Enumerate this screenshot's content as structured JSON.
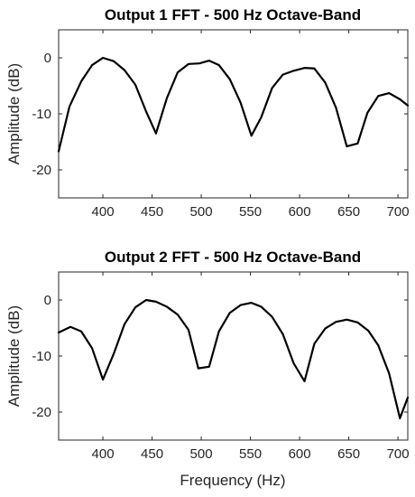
{
  "chart_data": [
    {
      "type": "line",
      "title": "Output 1 FFT - 500 Hz Octave-Band",
      "xlabel": "",
      "ylabel": "Amplitude (dB)",
      "xlim": [
        355,
        710
      ],
      "ylim": [
        -25,
        5
      ],
      "xticks": [
        400,
        450,
        500,
        550,
        600,
        650,
        700
      ],
      "yticks": [
        0,
        -10,
        -20
      ],
      "xtick_labels": [
        "400",
        "450",
        "500",
        "550",
        "600",
        "650",
        "700"
      ],
      "ytick_labels": [
        "0",
        "-10",
        "-20"
      ],
      "grid": false,
      "series": [
        {
          "color": "#000000",
          "x": [
            355,
            366,
            378,
            389,
            400,
            411,
            422,
            433,
            444,
            454,
            465,
            476,
            487,
            498,
            508,
            518,
            529,
            540,
            551,
            561,
            572,
            583,
            594,
            605,
            615,
            626,
            637,
            648,
            659,
            669,
            680,
            691,
            702,
            710
          ],
          "y": [
            -16.7,
            -8.7,
            -4.2,
            -1.3,
            0.0,
            -0.6,
            -2.2,
            -4.8,
            -9.6,
            -13.5,
            -7.2,
            -2.6,
            -1.1,
            -1.0,
            -0.5,
            -1.3,
            -3.8,
            -8.0,
            -13.9,
            -10.6,
            -5.4,
            -3.0,
            -2.3,
            -1.8,
            -1.9,
            -4.4,
            -8.9,
            -15.8,
            -15.3,
            -9.8,
            -6.8,
            -6.3,
            -7.4,
            -8.5
          ]
        }
      ]
    },
    {
      "type": "line",
      "title": "Output 2 FFT - 500 Hz Octave-Band",
      "xlabel": "Frequency (Hz)",
      "ylabel": "Amplitude (dB)",
      "xlim": [
        355,
        710
      ],
      "ylim": [
        -25,
        5
      ],
      "xticks": [
        400,
        450,
        500,
        550,
        600,
        650,
        700
      ],
      "yticks": [
        0,
        -10,
        -20
      ],
      "xtick_labels": [
        "400",
        "450",
        "500",
        "550",
        "600",
        "650",
        "700"
      ],
      "ytick_labels": [
        "0",
        "-10",
        "-20"
      ],
      "grid": false,
      "series": [
        {
          "color": "#000000",
          "x": [
            355,
            367,
            378,
            389,
            400,
            411,
            422,
            433,
            444,
            454,
            465,
            476,
            487,
            497,
            508,
            518,
            529,
            540,
            551,
            561,
            572,
            583,
            594,
            605,
            615,
            626,
            637,
            648,
            659,
            670,
            680,
            691,
            702,
            710
          ],
          "y": [
            -5.8,
            -4.8,
            -5.6,
            -8.6,
            -14.2,
            -9.6,
            -4.3,
            -1.3,
            0.0,
            -0.3,
            -1.2,
            -2.6,
            -5.3,
            -12.2,
            -11.9,
            -5.6,
            -2.3,
            -0.9,
            -0.5,
            -1.2,
            -3.0,
            -6.1,
            -11.3,
            -14.5,
            -7.8,
            -5.1,
            -3.9,
            -3.5,
            -4.0,
            -5.5,
            -8.1,
            -13.1,
            -21.1,
            -17.4
          ]
        }
      ]
    }
  ]
}
